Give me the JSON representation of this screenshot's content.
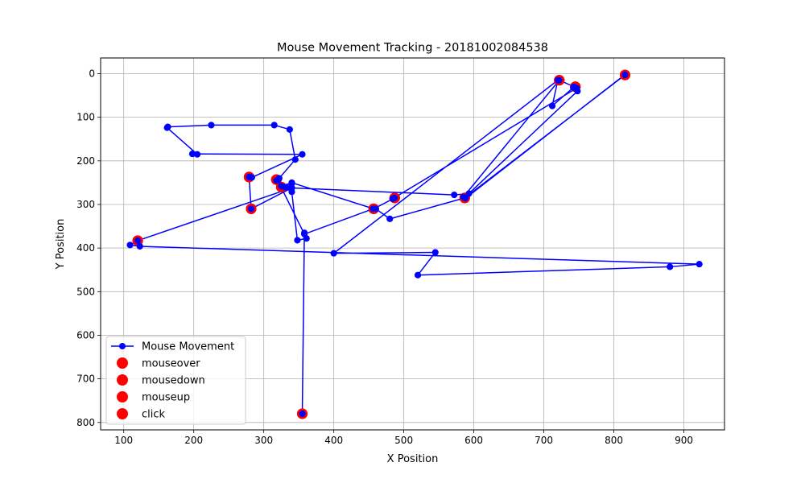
{
  "chart_data": {
    "type": "line",
    "title": "Mouse Movement Tracking - 20181002084538",
    "xlabel": "X Position",
    "ylabel": "Y Position",
    "xlim": [
      67,
      958
    ],
    "ylim": [
      817,
      -36
    ],
    "y_inverted": true,
    "x_ticks": [
      100,
      200,
      300,
      400,
      500,
      600,
      700,
      800,
      900
    ],
    "y_ticks": [
      0,
      100,
      200,
      300,
      400,
      500,
      600,
      700,
      800
    ],
    "grid": true,
    "legend_position": "lower-left",
    "colors": {
      "path": "#0000ff",
      "event": "#ff0000"
    },
    "series": [
      {
        "name": "Mouse Movement",
        "type": "line",
        "points": [
          [
            355,
            780
          ],
          [
            355,
            780
          ],
          [
            358,
            365
          ],
          [
            361,
            378
          ],
          [
            348,
            382
          ],
          [
            340,
            271
          ],
          [
            340,
            252
          ],
          [
            325,
            258
          ],
          [
            338,
            262
          ],
          [
            572,
            278
          ],
          [
            593,
            275
          ],
          [
            748,
            40
          ],
          [
            742,
            32
          ],
          [
            712,
            74
          ],
          [
            720,
            15
          ],
          [
            400,
            412
          ],
          [
            545,
            410
          ],
          [
            520,
            462
          ],
          [
            880,
            443
          ],
          [
            922,
            437
          ],
          [
            123,
            396
          ],
          [
            109,
            393
          ],
          [
            120,
            383
          ],
          [
            340,
            262
          ],
          [
            282,
            310
          ],
          [
            279,
            237
          ],
          [
            283,
            238
          ],
          [
            355,
            185
          ],
          [
            198,
            184
          ],
          [
            205,
            185
          ],
          [
            162,
            124
          ],
          [
            163,
            122
          ],
          [
            225,
            118
          ],
          [
            315,
            118
          ],
          [
            337,
            128
          ],
          [
            345,
            197
          ],
          [
            322,
            240
          ],
          [
            318,
            245
          ],
          [
            330,
            260
          ],
          [
            325,
            258
          ],
          [
            340,
            250
          ],
          [
            457,
            310
          ],
          [
            487,
            285
          ],
          [
            484,
            287
          ],
          [
            747,
            33
          ],
          [
            743,
            30
          ],
          [
            722,
            15
          ],
          [
            585,
            283
          ],
          [
            588,
            286
          ],
          [
            816,
            2
          ],
          [
            816,
            3
          ],
          [
            587,
            285
          ],
          [
            480,
            333
          ],
          [
            460,
            310
          ],
          [
            456,
            310
          ],
          [
            358,
            368
          ],
          [
            320,
            245
          ],
          [
            340,
            262
          ]
        ]
      },
      {
        "name": "mouseover",
        "type": "scatter",
        "points": [
          [
            355,
            780
          ],
          [
            120,
            383
          ],
          [
            282,
            310
          ],
          [
            279,
            237
          ],
          [
            318,
            243
          ],
          [
            325,
            260
          ],
          [
            457,
            310
          ],
          [
            487,
            285
          ],
          [
            587,
            285
          ],
          [
            722,
            15
          ],
          [
            745,
            30
          ],
          [
            816,
            3
          ]
        ]
      },
      {
        "name": "mousedown",
        "type": "scatter",
        "points": [
          [
            355,
            780
          ],
          [
            120,
            383
          ],
          [
            282,
            310
          ],
          [
            279,
            237
          ],
          [
            318,
            243
          ],
          [
            325,
            260
          ],
          [
            457,
            310
          ],
          [
            487,
            285
          ],
          [
            587,
            285
          ],
          [
            722,
            15
          ],
          [
            745,
            30
          ],
          [
            816,
            3
          ]
        ]
      },
      {
        "name": "mouseup",
        "type": "scatter",
        "points": [
          [
            355,
            780
          ],
          [
            120,
            383
          ],
          [
            282,
            310
          ],
          [
            279,
            237
          ],
          [
            318,
            243
          ],
          [
            325,
            260
          ],
          [
            457,
            310
          ],
          [
            487,
            285
          ],
          [
            587,
            285
          ],
          [
            722,
            15
          ],
          [
            745,
            30
          ],
          [
            816,
            3
          ]
        ]
      },
      {
        "name": "click",
        "type": "scatter",
        "points": [
          [
            355,
            780
          ],
          [
            120,
            383
          ],
          [
            282,
            310
          ],
          [
            279,
            237
          ],
          [
            318,
            243
          ],
          [
            325,
            260
          ],
          [
            457,
            310
          ],
          [
            487,
            285
          ],
          [
            587,
            285
          ],
          [
            722,
            15
          ],
          [
            745,
            30
          ],
          [
            816,
            3
          ]
        ]
      }
    ]
  }
}
